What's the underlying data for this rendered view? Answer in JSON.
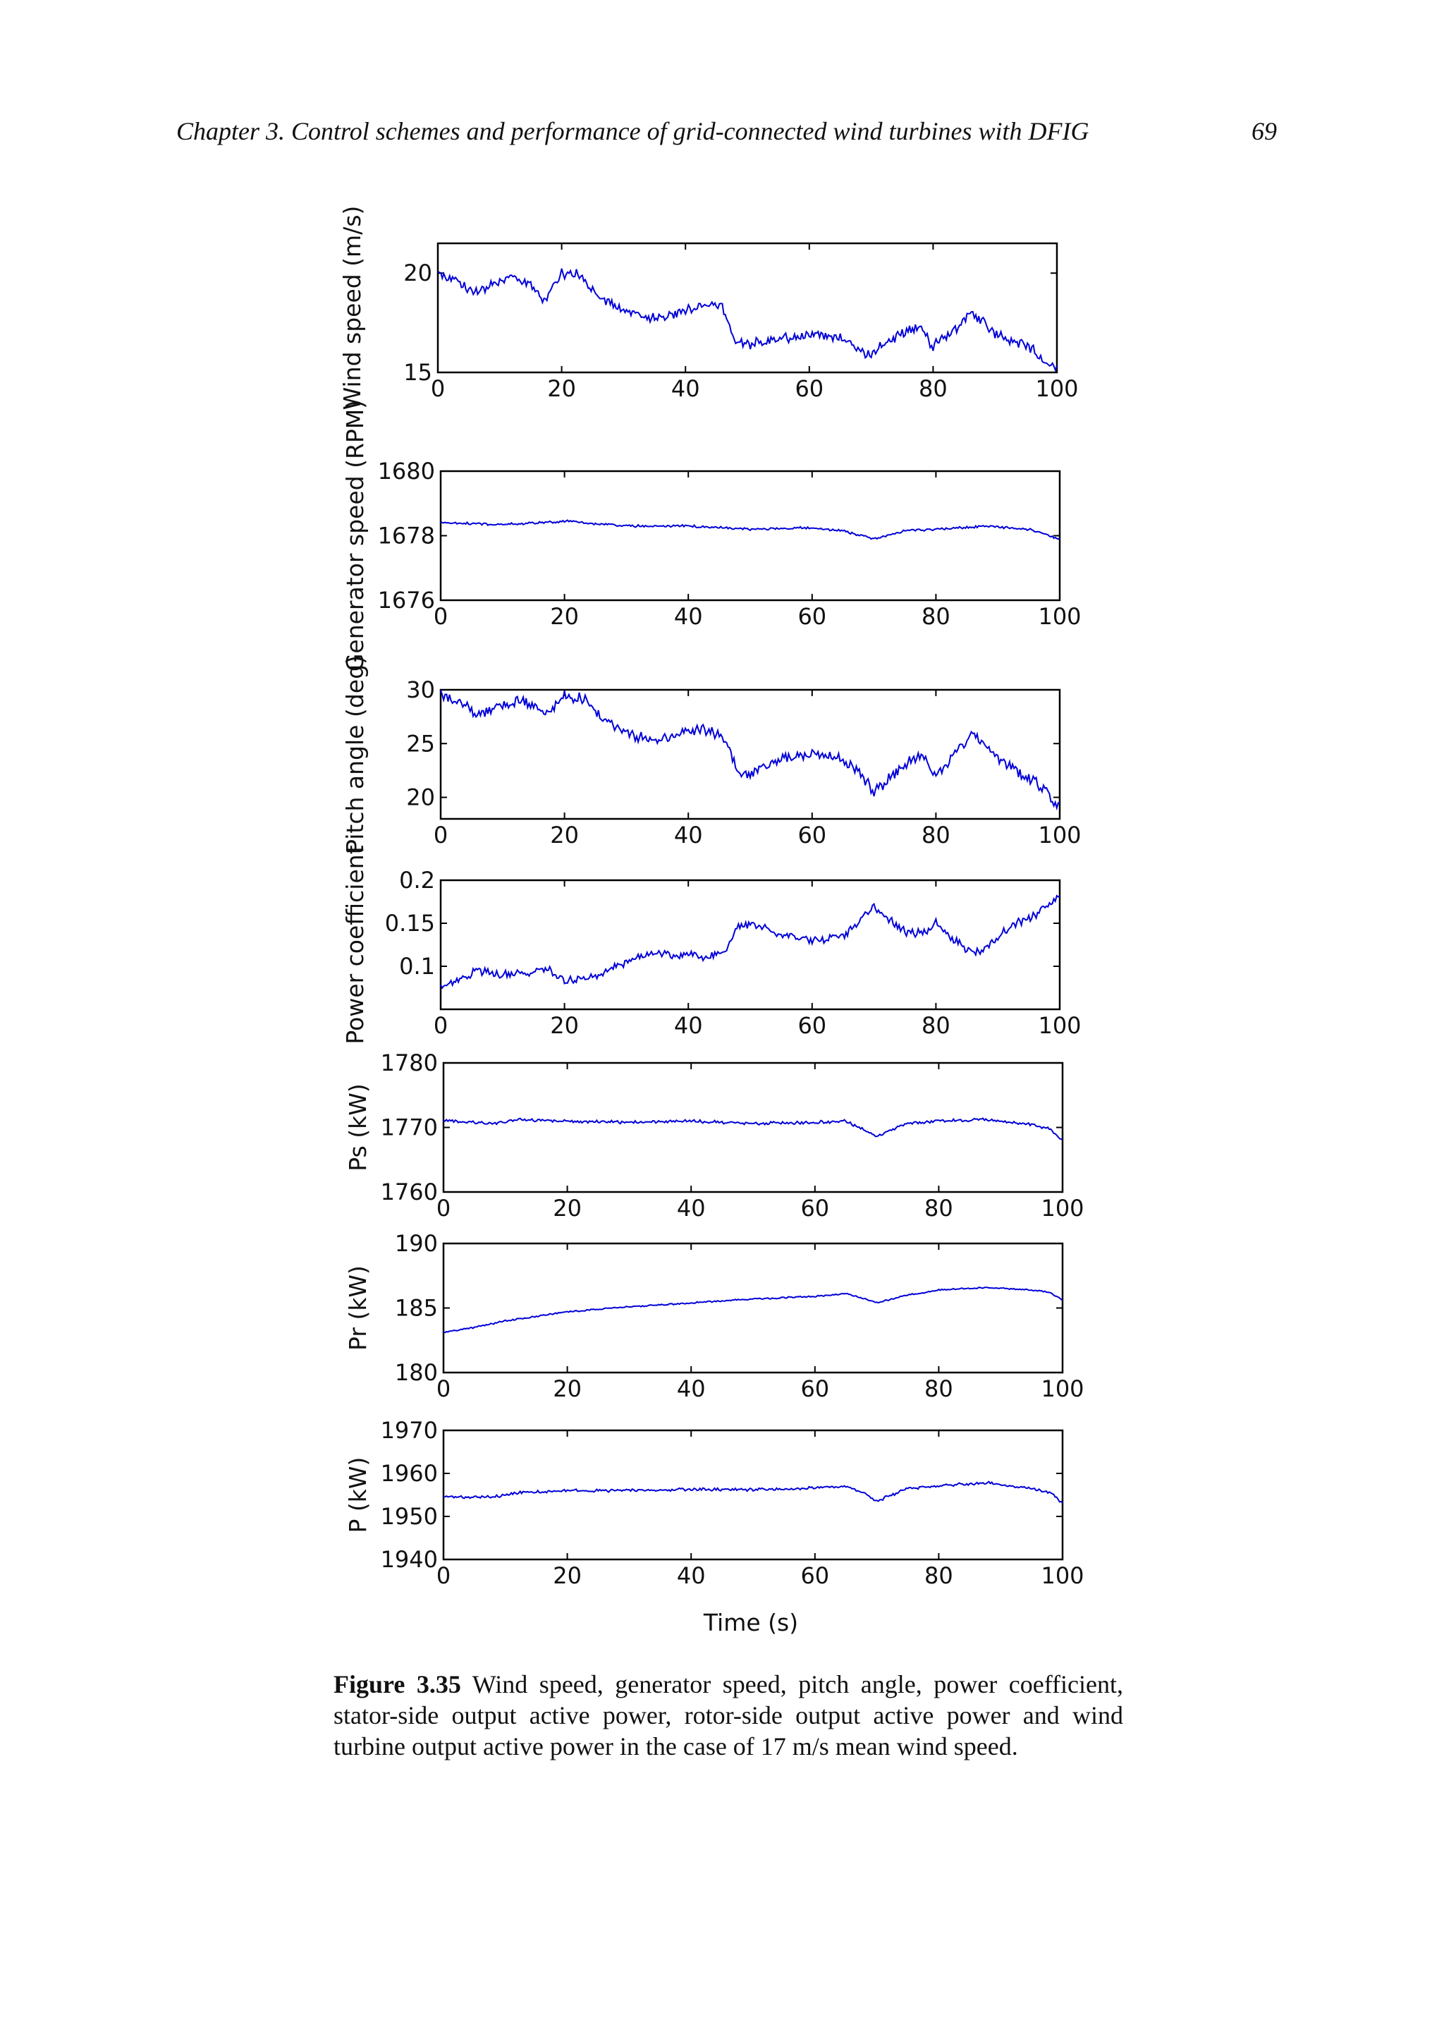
{
  "header": {
    "running_title": "Chapter 3. Control schemes and performance of grid-connected wind turbines with DFIG",
    "page_number": "69"
  },
  "figure": {
    "xlabel": "Time (s)",
    "line_color": "#0000d8"
  },
  "caption": {
    "label": "Figure 3.35",
    "text": " Wind speed, generator speed, pitch angle, power coefficient, stator-side output active power, rotor-side output active power and wind turbine output active power in the case of 17 m/s mean wind speed."
  },
  "chart_data": [
    {
      "type": "line",
      "ylabel": "Wind speed (m/s)",
      "xlim": [
        0,
        100
      ],
      "ylim": [
        15,
        21.5
      ],
      "xticks": [
        0,
        20,
        40,
        60,
        80,
        100
      ],
      "yticks": [
        15,
        20
      ],
      "x": [
        0,
        3,
        6,
        9,
        12,
        15,
        17,
        20,
        23,
        26,
        30,
        35,
        40,
        43,
        46,
        48,
        50,
        55,
        60,
        65,
        68,
        70,
        72,
        75,
        78,
        80,
        83,
        86,
        88,
        90,
        93,
        96,
        98,
        100
      ],
      "y": [
        20.0,
        19.6,
        19.0,
        19.4,
        19.8,
        19.4,
        18.6,
        20.0,
        19.9,
        18.9,
        18.1,
        17.7,
        18.1,
        18.5,
        18.3,
        16.5,
        16.4,
        16.7,
        16.9,
        16.8,
        16.1,
        15.9,
        16.4,
        17.0,
        17.2,
        16.3,
        17.0,
        18.0,
        17.6,
        17.0,
        16.6,
        16.2,
        15.5,
        15.2
      ],
      "noise": 0.28
    },
    {
      "type": "line",
      "ylabel": "Generator speed (RPM)",
      "xlim": [
        0,
        100
      ],
      "ylim": [
        1676,
        1680
      ],
      "xticks": [
        0,
        20,
        40,
        60,
        80,
        100
      ],
      "yticks": [
        1676,
        1678,
        1680
      ],
      "x": [
        0,
        10,
        20,
        30,
        40,
        50,
        60,
        65,
        70,
        75,
        80,
        88,
        95,
        100
      ],
      "y": [
        1678.4,
        1678.35,
        1678.45,
        1678.3,
        1678.3,
        1678.2,
        1678.25,
        1678.15,
        1677.9,
        1678.15,
        1678.2,
        1678.3,
        1678.2,
        1677.9
      ],
      "noise": 0.04
    },
    {
      "type": "line",
      "ylabel": "Pitch angle  (deg)",
      "xlim": [
        0,
        100
      ],
      "ylim": [
        18,
        30
      ],
      "xticks": [
        0,
        20,
        40,
        60,
        80,
        100
      ],
      "yticks": [
        20,
        25,
        30
      ],
      "x": [
        0,
        3,
        6,
        9,
        12,
        15,
        17,
        20,
        23,
        26,
        30,
        35,
        40,
        43,
        46,
        48,
        50,
        55,
        60,
        65,
        68,
        70,
        72,
        75,
        78,
        80,
        83,
        86,
        88,
        90,
        93,
        96,
        98,
        100
      ],
      "y": [
        29.5,
        28.8,
        27.8,
        28.4,
        29.0,
        28.5,
        27.5,
        29.4,
        29.2,
        27.5,
        26.0,
        25.2,
        26.2,
        26.3,
        25.4,
        22.5,
        22.3,
        23.5,
        24.0,
        23.5,
        22.0,
        20.5,
        21.5,
        23.2,
        23.8,
        22.0,
        24.0,
        25.8,
        25.0,
        23.5,
        22.5,
        21.5,
        20.5,
        19.0
      ],
      "noise": 0.55
    },
    {
      "type": "line",
      "ylabel": "Power coefficient",
      "xlim": [
        0,
        100
      ],
      "ylim": [
        0.05,
        0.2
      ],
      "xticks": [
        0,
        20,
        40,
        60,
        80,
        100
      ],
      "yticks": [
        0.1,
        0.15,
        0.2
      ],
      "x": [
        0,
        3,
        6,
        10,
        14,
        17,
        20,
        25,
        30,
        35,
        38,
        40,
        43,
        46,
        48,
        50,
        55,
        60,
        65,
        68,
        70,
        72,
        75,
        78,
        80,
        83,
        86,
        88,
        90,
        93,
        96,
        98,
        100
      ],
      "y": [
        0.075,
        0.085,
        0.095,
        0.09,
        0.092,
        0.098,
        0.083,
        0.09,
        0.105,
        0.118,
        0.11,
        0.115,
        0.11,
        0.118,
        0.145,
        0.15,
        0.138,
        0.13,
        0.135,
        0.155,
        0.17,
        0.158,
        0.14,
        0.138,
        0.15,
        0.13,
        0.115,
        0.12,
        0.135,
        0.15,
        0.16,
        0.17,
        0.18
      ],
      "noise": 0.005
    },
    {
      "type": "line",
      "ylabel": "Ps (kW)",
      "xlim": [
        0,
        100
      ],
      "ylim": [
        1760,
        1780
      ],
      "xticks": [
        0,
        20,
        40,
        60,
        80,
        100
      ],
      "yticks": [
        1760,
        1770,
        1780
      ],
      "x": [
        0,
        8,
        12,
        20,
        30,
        40,
        50,
        60,
        65,
        68,
        70,
        72,
        75,
        80,
        88,
        95,
        98,
        100
      ],
      "y": [
        1771,
        1770.6,
        1771.2,
        1771,
        1770.8,
        1771,
        1770.6,
        1770.8,
        1771,
        1769.6,
        1768.5,
        1769.6,
        1770.6,
        1771,
        1771.2,
        1770.5,
        1769.8,
        1768
      ],
      "noise": 0.25
    },
    {
      "type": "line",
      "ylabel": "Pr (kW)",
      "xlim": [
        0,
        100
      ],
      "ylim": [
        180,
        190
      ],
      "xticks": [
        0,
        20,
        40,
        60,
        80,
        100
      ],
      "yticks": [
        180,
        185,
        190
      ],
      "x": [
        0,
        5,
        10,
        20,
        30,
        40,
        50,
        60,
        65,
        68,
        70,
        75,
        80,
        88,
        95,
        98,
        100
      ],
      "y": [
        183.1,
        183.5,
        184.0,
        184.7,
        185.1,
        185.4,
        185.7,
        185.9,
        186.1,
        185.7,
        185.4,
        186.0,
        186.4,
        186.6,
        186.4,
        186.2,
        185.6
      ],
      "noise": 0.06
    },
    {
      "type": "line",
      "ylabel": "P (kW)",
      "xlim": [
        0,
        100
      ],
      "ylim": [
        1940,
        1970
      ],
      "xticks": [
        0,
        20,
        40,
        60,
        80,
        100
      ],
      "yticks": [
        1940,
        1950,
        1960,
        1970
      ],
      "x": [
        0,
        8,
        12,
        20,
        30,
        40,
        50,
        60,
        65,
        68,
        70,
        72,
        75,
        80,
        88,
        95,
        98,
        100
      ],
      "y": [
        1954.5,
        1954.5,
        1955.5,
        1956,
        1956,
        1956.3,
        1956.2,
        1956.6,
        1957,
        1955.5,
        1953.5,
        1954.8,
        1956.4,
        1957.2,
        1957.8,
        1956.5,
        1955.5,
        1953
      ],
      "noise": 0.35
    }
  ]
}
